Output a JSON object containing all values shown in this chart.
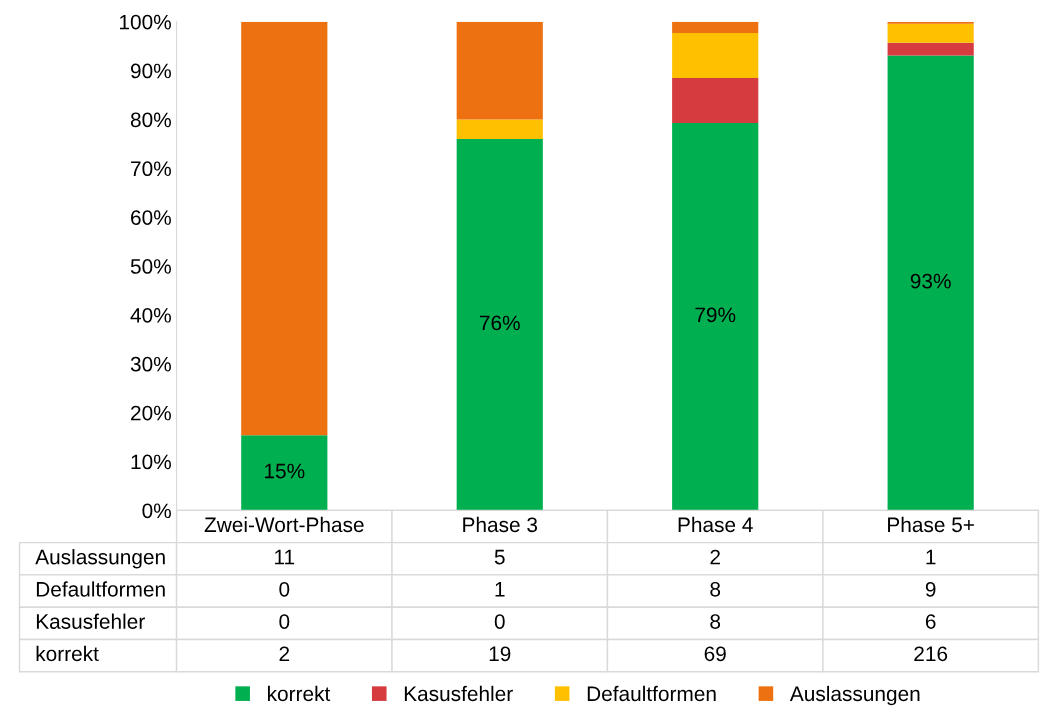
{
  "chart_data": {
    "type": "bar",
    "stacked": true,
    "categories": [
      "Zwei-Wort-Phase",
      "Phase 3",
      "Phase 4",
      "Phase 5+"
    ],
    "series": [
      {
        "name": "korrekt",
        "color": "#00b050",
        "values": [
          15.4,
          76,
          79.3,
          93.1
        ],
        "value_labels": [
          "15%",
          "76%",
          "79%",
          "93%"
        ]
      },
      {
        "name": "Kasusfehler",
        "color": "#d63b3f",
        "values": [
          0,
          0,
          9.2,
          2.6
        ]
      },
      {
        "name": "Defaultformen",
        "color": "#ffc000",
        "values": [
          0,
          4,
          9.2,
          3.9
        ]
      },
      {
        "name": "Auslassungen",
        "color": "#ed7110",
        "values": [
          84.6,
          20,
          2.3,
          0.4
        ]
      }
    ],
    "annotations": [
      "Auslassungen",
      "11",
      "5",
      "2",
      "1",
      "Defaultformen",
      "0",
      "1",
      "8",
      "9",
      "Kasusfehler",
      "0",
      "0",
      "8",
      "6",
      "korrekt",
      "2",
      "19",
      "69",
      "216"
    ],
    "ylim": [
      0,
      100
    ],
    "yticks": [
      {
        "value": 0,
        "label": "0%"
      },
      {
        "value": 10,
        "label": "10%"
      },
      {
        "value": 20,
        "label": "20%"
      },
      {
        "value": 30,
        "label": "30%"
      },
      {
        "value": 40,
        "label": "40%"
      },
      {
        "value": 50,
        "label": "50%"
      },
      {
        "value": 60,
        "label": "60%"
      },
      {
        "value": 70,
        "label": "70%"
      },
      {
        "value": 80,
        "label": "80%"
      },
      {
        "value": 90,
        "label": "90%"
      },
      {
        "value": 100,
        "label": "100%"
      }
    ],
    "grid": false,
    "legend": "bottom"
  }
}
